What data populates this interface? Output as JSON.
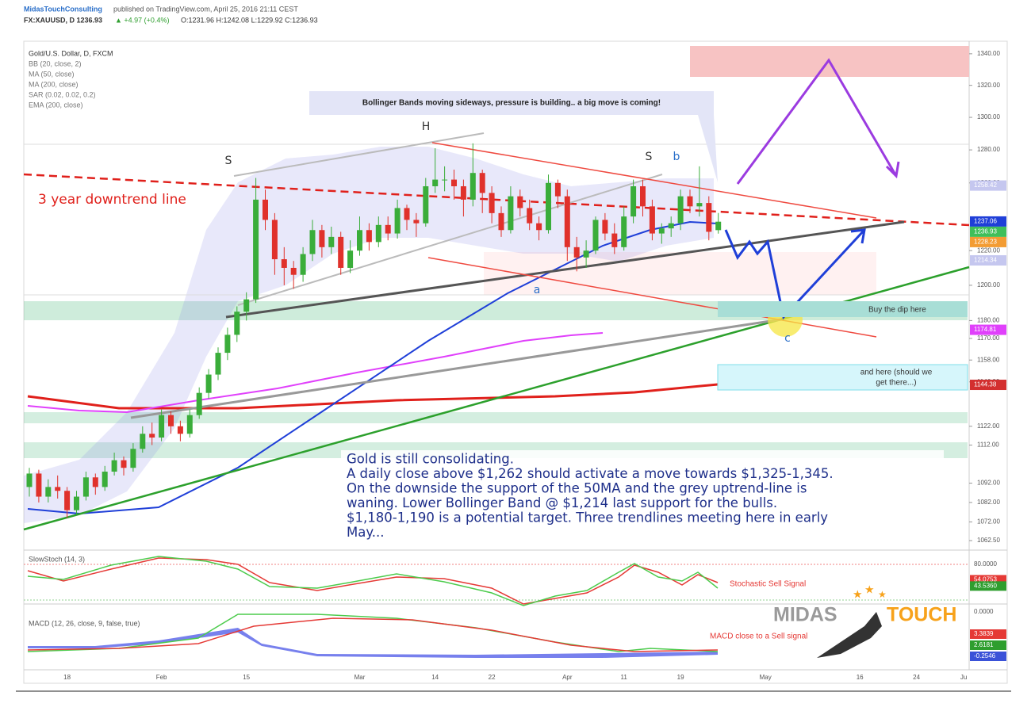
{
  "chart_data": {
    "type": "candlestick",
    "header": {
      "publisher": "MidasTouchConsulting",
      "published": "published on TradingView.com, April 25, 2016 21:11 CEST",
      "symbol": "FX:XAUUSD, D 1236.93",
      "change": "▲ +4.97 (+0.4%)",
      "quote": "O:1231.96 H:1242.08 L:1229.92 C:1236.93"
    },
    "legend": [
      "Gold/U.S. Dollar, D, FXCM",
      "BB (20, close, 2)",
      "MA (50, close)",
      "MA (200, close)",
      "SAR (0.02, 0.02, 0.2)",
      "EMA (200, close)"
    ],
    "annotations": {
      "bollinger": "Bollinger Bands moving sideways, pressure is building.. a big move is coming!",
      "downtrend": "3 year downtrend line",
      "s1": "S",
      "h": "H",
      "s2": "S",
      "b": "b",
      "a": "a",
      "c": "c",
      "buy_dip": "Buy the dip here",
      "and_here": [
        "and here (should we",
        "get there...)"
      ],
      "summary": [
        "Gold is still consolidating.",
        "A daily close above $1,262 should activate a move towards $1,325-1,345.",
        "On the downside the support of the 50MA and the grey uptrend-line is",
        "waning. Lower Bollinger Band @ $1,214 last support for the bulls.",
        "$1,180-1,190 is a potential target. Three trendlines meeting here in early",
        "May..."
      ],
      "stoch_note": "Stochastic Sell Signal",
      "macd_note": "MACD close to a Sell signal",
      "brand1": "MIDAS",
      "brand2": "TOUCH"
    },
    "log_scale": true,
    "up_color": "#3aad3a",
    "down_color": "#e0312b",
    "ylim": [
      1058.5,
      1345
    ],
    "yticks": [
      {
        "value": 1340,
        "label": "1340.00"
      },
      {
        "value": 1320,
        "label": "1320.00"
      },
      {
        "value": 1300,
        "label": "1300.00"
      },
      {
        "value": 1280,
        "label": "1280.00"
      },
      {
        "value": 1260,
        "label": "1260.00"
      },
      {
        "value": 1220,
        "label": "1220.00"
      },
      {
        "value": 1200,
        "label": "1200.00"
      },
      {
        "value": 1180,
        "label": "1180.00"
      },
      {
        "value": 1170,
        "label": "1170.00"
      },
      {
        "value": 1158,
        "label": "1158.00"
      },
      {
        "value": 1146,
        "label": "1146.00"
      },
      {
        "value": 1122,
        "label": "1122.00"
      },
      {
        "value": 1112,
        "label": "1112.00"
      },
      {
        "value": 1092,
        "label": "1092.00"
      },
      {
        "value": 1082,
        "label": "1082.00"
      },
      {
        "value": 1072,
        "label": "1072.00"
      },
      {
        "value": 1062.5,
        "label": "1062.50"
      }
    ],
    "price_labels": [
      {
        "value": 1258.42,
        "label": "1258.42",
        "color": "#c5c7ef"
      },
      {
        "value": 1237.06,
        "label": "1237.06",
        "color": "#1f3fd8"
      },
      {
        "value": 1236.93,
        "label": "1236.93",
        "color": "#3fbf5a"
      },
      {
        "value": 1228.23,
        "label": "1228.23",
        "color": "#f39c33"
      },
      {
        "value": 1214.34,
        "label": "1214.34",
        "color": "#c5c7ef"
      },
      {
        "value": 1174.81,
        "label": "1174.81",
        "color": "#e040fb"
      },
      {
        "value": 1144.38,
        "label": "1144.38",
        "color": "#d32f2f"
      }
    ],
    "categories": [
      null,
      null,
      null,
      null,
      "18",
      null,
      null,
      null,
      null,
      null,
      null,
      null,
      null,
      null,
      "Feb",
      null,
      null,
      null,
      null,
      null,
      null,
      null,
      null,
      "15",
      null,
      null,
      null,
      null,
      null,
      null,
      null,
      null,
      null,
      null,
      null,
      "Mar",
      null,
      null,
      null,
      null,
      null,
      null,
      null,
      "14",
      null,
      null,
      null,
      null,
      null,
      "22",
      null,
      null,
      null,
      null,
      null,
      null,
      null,
      "Apr",
      null,
      null,
      null,
      null,
      null,
      "11",
      null,
      null,
      null,
      null,
      null,
      "19",
      null,
      null,
      null,
      null,
      null,
      null,
      null,
      null,
      "May",
      null,
      null,
      null,
      null,
      null,
      null,
      null,
      null,
      null,
      "16",
      null,
      null,
      null,
      null,
      null,
      "24",
      null,
      null,
      null,
      null,
      "Ju"
    ],
    "ohlc": [
      [
        1090,
        1100,
        1085,
        1097
      ],
      [
        1097,
        1099,
        1082,
        1085
      ],
      [
        1085,
        1094,
        1082,
        1090
      ],
      [
        1090,
        1096,
        1084,
        1088
      ],
      [
        1088,
        1090,
        1074,
        1078
      ],
      [
        1078,
        1088,
        1076,
        1085
      ],
      [
        1085,
        1098,
        1083,
        1095
      ],
      [
        1095,
        1097,
        1086,
        1090
      ],
      [
        1090,
        1101,
        1088,
        1098
      ],
      [
        1098,
        1108,
        1096,
        1104
      ],
      [
        1104,
        1106,
        1096,
        1100
      ],
      [
        1100,
        1113,
        1098,
        1110
      ],
      [
        1110,
        1122,
        1108,
        1118
      ],
      [
        1118,
        1124,
        1112,
        1116
      ],
      [
        1116,
        1131,
        1114,
        1128
      ],
      [
        1128,
        1130,
        1118,
        1122
      ],
      [
        1122,
        1125,
        1114,
        1118
      ],
      [
        1118,
        1131,
        1116,
        1128
      ],
      [
        1128,
        1143,
        1126,
        1140
      ],
      [
        1140,
        1153,
        1137,
        1150
      ],
      [
        1150,
        1165,
        1147,
        1162
      ],
      [
        1162,
        1176,
        1158,
        1172
      ],
      [
        1172,
        1188,
        1168,
        1185
      ],
      [
        1185,
        1196,
        1180,
        1192
      ],
      [
        1192,
        1263,
        1190,
        1250
      ],
      [
        1250,
        1256,
        1232,
        1238
      ],
      [
        1238,
        1242,
        1206,
        1215
      ],
      [
        1215,
        1222,
        1200,
        1210
      ],
      [
        1210,
        1214,
        1198,
        1206
      ],
      [
        1206,
        1222,
        1202,
        1218
      ],
      [
        1218,
        1238,
        1214,
        1232
      ],
      [
        1232,
        1235,
        1216,
        1222
      ],
      [
        1222,
        1234,
        1218,
        1228
      ],
      [
        1228,
        1231,
        1206,
        1210
      ],
      [
        1210,
        1226,
        1207,
        1220
      ],
      [
        1220,
        1240,
        1217,
        1232
      ],
      [
        1232,
        1236,
        1220,
        1225
      ],
      [
        1225,
        1240,
        1222,
        1235
      ],
      [
        1235,
        1240,
        1226,
        1230
      ],
      [
        1230,
        1250,
        1227,
        1245
      ],
      [
        1245,
        1247,
        1232,
        1238
      ],
      [
        1238,
        1242,
        1228,
        1236
      ],
      [
        1236,
        1263,
        1234,
        1258
      ],
      [
        1258,
        1281,
        1254,
        1262
      ],
      [
        1262,
        1270,
        1255,
        1262
      ],
      [
        1262,
        1268,
        1250,
        1258
      ],
      [
        1258,
        1262,
        1240,
        1250
      ],
      [
        1250,
        1284,
        1246,
        1266
      ],
      [
        1266,
        1268,
        1242,
        1254
      ],
      [
        1254,
        1258,
        1236,
        1242
      ],
      [
        1242,
        1246,
        1228,
        1232
      ],
      [
        1232,
        1258,
        1230,
        1252
      ],
      [
        1252,
        1256,
        1240,
        1245
      ],
      [
        1245,
        1250,
        1232,
        1236
      ],
      [
        1236,
        1240,
        1226,
        1232
      ],
      [
        1232,
        1265,
        1230,
        1260
      ],
      [
        1260,
        1262,
        1245,
        1252
      ],
      [
        1252,
        1256,
        1214,
        1222
      ],
      [
        1222,
        1228,
        1208,
        1216
      ],
      [
        1216,
        1226,
        1210,
        1220
      ],
      [
        1220,
        1240,
        1218,
        1238
      ],
      [
        1238,
        1242,
        1226,
        1230
      ],
      [
        1230,
        1236,
        1218,
        1222
      ],
      [
        1222,
        1246,
        1220,
        1240
      ],
      [
        1240,
        1262,
        1236,
        1258
      ],
      [
        1258,
        1262,
        1240,
        1246
      ],
      [
        1246,
        1250,
        1226,
        1230
      ],
      [
        1230,
        1236,
        1224,
        1233
      ],
      [
        1233,
        1240,
        1228,
        1236
      ],
      [
        1236,
        1256,
        1232,
        1252
      ],
      [
        1252,
        1256,
        1242,
        1246
      ],
      [
        1246,
        1270,
        1240,
        1248
      ],
      [
        1248,
        1252,
        1226,
        1231
      ],
      [
        1231.96,
        1242.08,
        1229.92,
        1236.93
      ]
    ],
    "stoch": {
      "title": "SlowStoch (14, 3)",
      "labels": [
        {
          "value": 80,
          "label": "80.0000",
          "color": "#ffffff"
        },
        {
          "value": 54.0753,
          "label": "54.0753",
          "color": "#e53935"
        },
        {
          "value": 43.536,
          "label": "43.5360",
          "color": "#2e9e2e"
        },
        {
          "value": 0,
          "label": "0.0000",
          "color": "#ffffff"
        }
      ]
    },
    "macd": {
      "title": "MACD (12, 26, close, 9, false, true)",
      "labels": [
        {
          "value": 3.3839,
          "label": "3.3839",
          "color": "#e53935"
        },
        {
          "value": 2.6181,
          "label": "2.6181",
          "color": "#2e9e2e"
        },
        {
          "value": -0.2546,
          "label": "-0.2546",
          "color": "#3a52d8"
        }
      ]
    }
  }
}
